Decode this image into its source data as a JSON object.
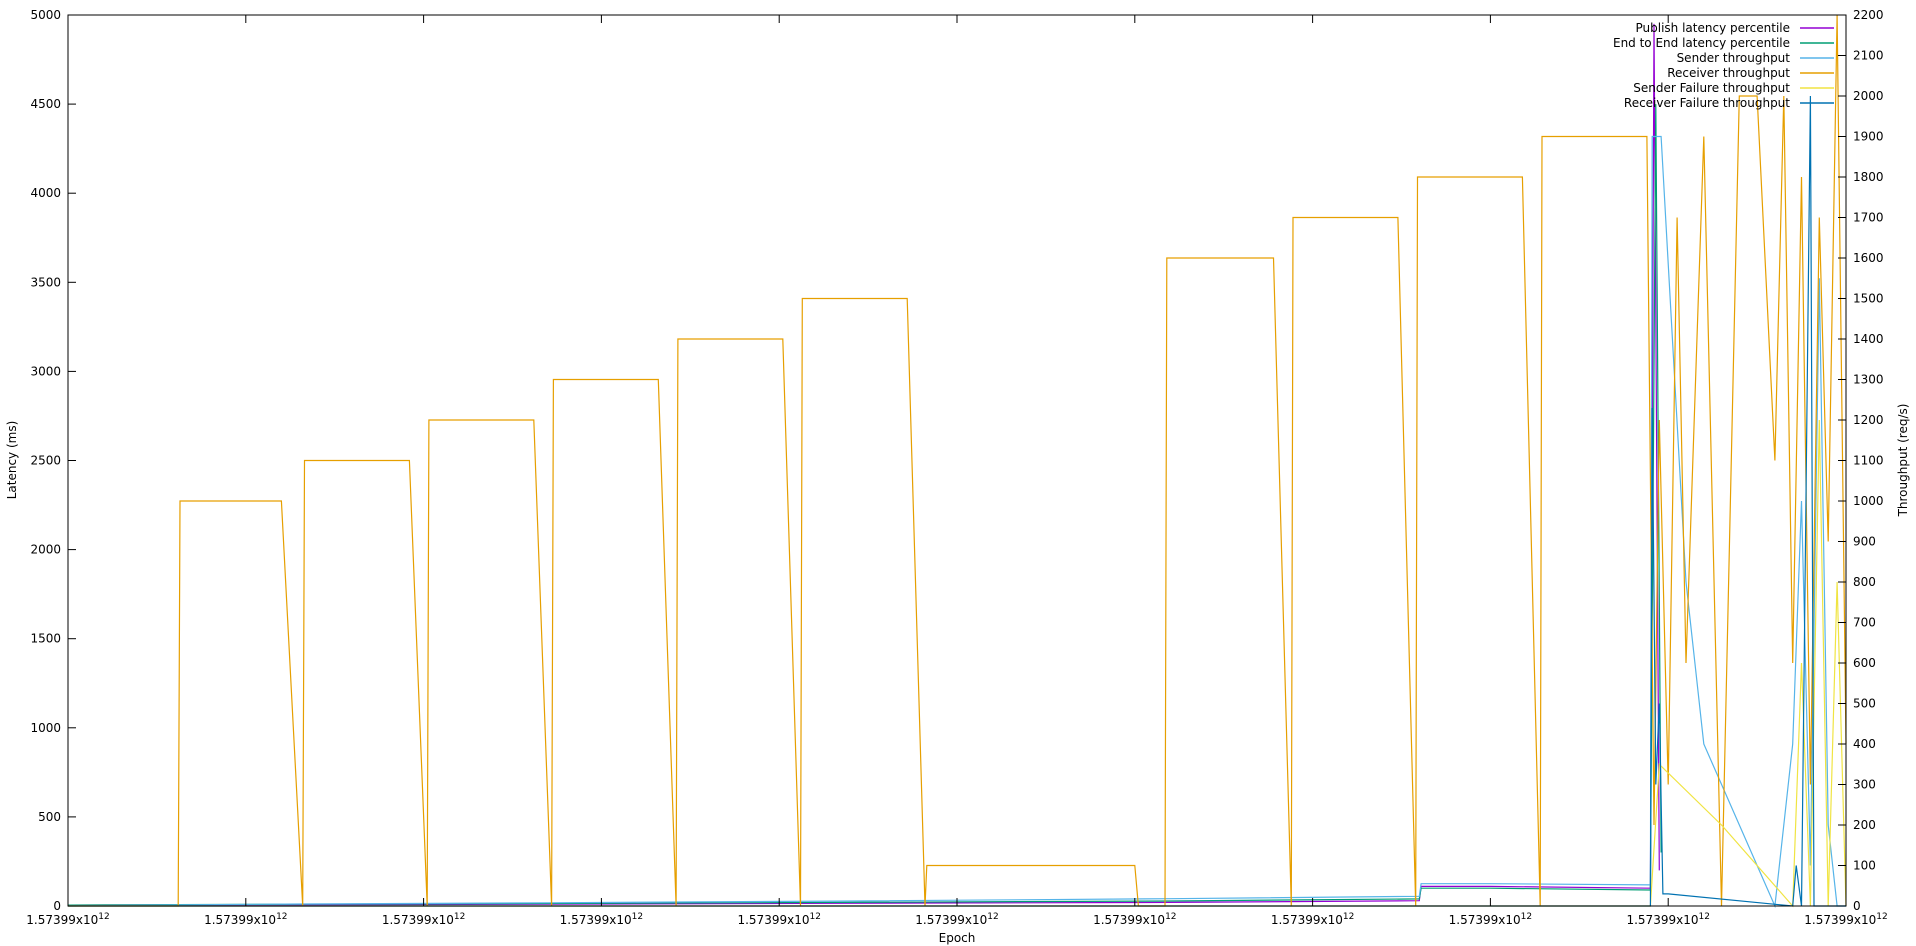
{
  "chart_data": {
    "type": "line",
    "xlabel": "Epoch",
    "ylabel": "Latency (ms)",
    "y2label": "Throughput (req/s)",
    "x_tick_labels": [
      {
        "mantissa": "1.57399x10",
        "exp": "12"
      },
      {
        "mantissa": "1.57399x10",
        "exp": "12"
      },
      {
        "mantissa": "1.57399x10",
        "exp": "12"
      },
      {
        "mantissa": "1.57399x10",
        "exp": "12"
      },
      {
        "mantissa": "1.57399x10",
        "exp": "12"
      },
      {
        "mantissa": "1.57399x10",
        "exp": "12"
      },
      {
        "mantissa": "1.57399x10",
        "exp": "12"
      },
      {
        "mantissa": "1.57399x10",
        "exp": "12"
      },
      {
        "mantissa": "1.57399x10",
        "exp": "12"
      },
      {
        "mantissa": "1.57399x10",
        "exp": "12"
      },
      {
        "mantissa": "1.57399x10",
        "exp": "12"
      }
    ],
    "xlim": [
      0,
      10
    ],
    "ylim": [
      0,
      5000
    ],
    "y_ticks": [
      0,
      500,
      1000,
      1500,
      2000,
      2500,
      3000,
      3500,
      4000,
      4500,
      5000
    ],
    "y2lim": [
      0,
      2200
    ],
    "y2_ticks": [
      0,
      100,
      200,
      300,
      400,
      500,
      600,
      700,
      800,
      900,
      1000,
      1100,
      1200,
      1300,
      1400,
      1500,
      1600,
      1700,
      1800,
      1900,
      2000,
      2100,
      2200
    ],
    "legend_position": "top-right",
    "series": [
      {
        "name": "Publish latency percentile",
        "axis": "y",
        "color": "#9400d3",
        "x": [
          0,
          0.62,
          1.3,
          2.7,
          4.3,
          6.2,
          7.6,
          7.61,
          8.0,
          8.9,
          8.92,
          8.95
        ],
        "y": [
          5,
          6,
          7,
          10,
          15,
          20,
          30,
          110,
          110,
          100,
          4950,
          200
        ]
      },
      {
        "name": "End to End latency percentile",
        "axis": "y",
        "color": "#009e73",
        "x": [
          0,
          0.62,
          1.3,
          2.7,
          4.3,
          6.2,
          7.6,
          7.61,
          8.0,
          8.9,
          8.93,
          8.96
        ],
        "y": [
          5,
          8,
          10,
          14,
          20,
          28,
          40,
          100,
          100,
          90,
          4500,
          300
        ]
      },
      {
        "name": "Sender throughput",
        "axis": "y2",
        "color": "#56b4e9",
        "x": [
          0,
          0.62,
          1.3,
          2.7,
          4.3,
          6.2,
          7.6,
          7.61,
          8.0,
          8.9,
          8.91,
          8.96,
          9.1,
          9.2,
          9.6,
          9.7,
          9.75,
          9.8,
          9.85,
          9.9,
          9.95,
          10
        ],
        "y": [
          0,
          3,
          5,
          8,
          12,
          18,
          24,
          55,
          55,
          52,
          1900,
          1900,
          800,
          400,
          0,
          400,
          1000,
          100,
          1550,
          200,
          0,
          0
        ]
      },
      {
        "name": "Receiver throughput",
        "axis": "y2",
        "color": "#e69f00",
        "x": [
          0,
          0.62,
          0.63,
          1.2,
          1.32,
          1.33,
          1.92,
          2.02,
          2.03,
          2.62,
          2.72,
          2.73,
          3.32,
          3.42,
          3.43,
          4.02,
          4.12,
          4.13,
          4.72,
          4.82,
          4.83,
          4.84,
          6.0,
          6.02,
          6.17,
          6.18,
          6.78,
          6.88,
          6.89,
          7.48,
          7.58,
          7.59,
          8.18,
          8.28,
          8.29,
          8.88,
          8.92,
          8.95,
          9.0,
          9.05,
          9.1,
          9.2,
          9.3,
          9.4,
          9.5,
          9.6,
          9.65,
          9.7,
          9.75,
          9.8,
          9.85,
          9.9,
          9.95,
          10
        ],
        "y": [
          0,
          0,
          1000,
          1000,
          0,
          1100,
          1100,
          0,
          1200,
          1200,
          0,
          1300,
          1300,
          0,
          1400,
          1400,
          0,
          1500,
          1500,
          0,
          100,
          100,
          100,
          0,
          0,
          1600,
          1600,
          0,
          1700,
          1700,
          0,
          1800,
          1800,
          0,
          1900,
          1900,
          200,
          1200,
          300,
          1700,
          600,
          1900,
          0,
          2000,
          2000,
          1100,
          2000,
          600,
          1800,
          300,
          1700,
          900,
          2200,
          400
        ]
      },
      {
        "name": "Sender Failure throughput",
        "axis": "y2",
        "color": "#f0e442",
        "x": [
          0,
          8.9,
          8.95,
          9.3,
          9.7,
          9.75,
          9.8,
          9.85,
          9.9,
          9.95,
          10
        ],
        "y": [
          0,
          0,
          350,
          200,
          0,
          600,
          0,
          1200,
          0,
          800,
          0
        ]
      },
      {
        "name": "Receiver Failure throughput",
        "axis": "y2",
        "color": "#0072b2",
        "x": [
          0,
          8.9,
          8.91,
          8.93,
          8.95,
          8.97,
          9.0,
          9.7,
          9.72,
          9.75,
          9.8,
          9.82,
          10
        ],
        "y": [
          0,
          0,
          1230,
          300,
          500,
          30,
          30,
          0,
          100,
          0,
          2000,
          0,
          0
        ]
      }
    ]
  }
}
